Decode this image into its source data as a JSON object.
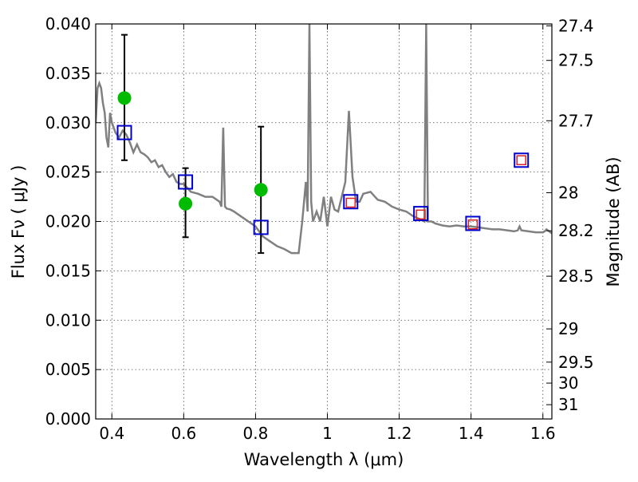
{
  "chart_data": {
    "type": "scatter",
    "xlabel": "Wavelength  λ (μm)",
    "ylabel": "Flux  Fν  ( μJy )",
    "y2label": "Magnitude (AB)",
    "xlim": [
      0.355,
      1.625
    ],
    "ylim": [
      0.0,
      0.04
    ],
    "grid": true,
    "x_ticks": [
      0.4,
      0.6,
      0.8,
      1.0,
      1.2,
      1.4,
      1.6
    ],
    "x_tick_labels": [
      "0.4",
      "0.6",
      "0.8",
      "1",
      "1.2",
      "1.4",
      "1.6"
    ],
    "y_ticks": [
      0.0,
      0.005,
      0.01,
      0.015,
      0.02,
      0.025,
      0.03,
      0.035,
      0.04
    ],
    "y_tick_labels": [
      "0.000",
      "0.005",
      "0.010",
      "0.015",
      "0.020",
      "0.025",
      "0.030",
      "0.035",
      "0.040"
    ],
    "y2_ticks": [
      27.4,
      27.5,
      27.7,
      28.0,
      28.2,
      28.5,
      29.0,
      29.5,
      30.0,
      31.0
    ],
    "y2_tick_labels": [
      "27.4",
      "27.5",
      "27.7",
      "28",
      "28.2",
      "28.5",
      "29",
      "29.5",
      "30",
      "31"
    ],
    "series": [
      {
        "kind": "model-spectrum-line",
        "color": "#808080",
        "x": [
          0.355,
          0.36,
          0.365,
          0.37,
          0.375,
          0.38,
          0.385,
          0.39,
          0.395,
          0.4,
          0.41,
          0.42,
          0.43,
          0.44,
          0.45,
          0.46,
          0.47,
          0.48,
          0.49,
          0.5,
          0.51,
          0.52,
          0.53,
          0.54,
          0.55,
          0.56,
          0.57,
          0.58,
          0.59,
          0.6,
          0.62,
          0.64,
          0.66,
          0.68,
          0.7,
          0.705,
          0.71,
          0.715,
          0.72,
          0.73,
          0.74,
          0.76,
          0.78,
          0.8,
          0.82,
          0.84,
          0.86,
          0.88,
          0.9,
          0.92,
          0.93,
          0.94,
          0.945,
          0.95,
          0.955,
          0.96,
          0.97,
          0.98,
          0.99,
          1.0,
          1.005,
          1.01,
          1.02,
          1.03,
          1.04,
          1.05,
          1.06,
          1.07,
          1.08,
          1.09,
          1.1,
          1.12,
          1.14,
          1.16,
          1.18,
          1.2,
          1.22,
          1.24,
          1.26,
          1.27,
          1.275,
          1.28,
          1.29,
          1.3,
          1.32,
          1.34,
          1.36,
          1.38,
          1.4,
          1.42,
          1.44,
          1.46,
          1.48,
          1.5,
          1.52,
          1.53,
          1.535,
          1.54,
          1.56,
          1.58,
          1.6,
          1.605,
          1.61,
          1.625
        ],
        "y": [
          0.03,
          0.0335,
          0.034,
          0.0335,
          0.032,
          0.031,
          0.0285,
          0.0275,
          0.031,
          0.03,
          0.029,
          0.0285,
          0.0292,
          0.0288,
          0.028,
          0.027,
          0.0278,
          0.027,
          0.0268,
          0.0265,
          0.026,
          0.0262,
          0.0255,
          0.0257,
          0.025,
          0.0245,
          0.0248,
          0.024,
          0.0238,
          0.0238,
          0.023,
          0.0228,
          0.0225,
          0.0225,
          0.022,
          0.0215,
          0.0295,
          0.0215,
          0.0213,
          0.0212,
          0.021,
          0.0205,
          0.02,
          0.0195,
          0.0185,
          0.018,
          0.0175,
          0.0172,
          0.0168,
          0.0168,
          0.02,
          0.024,
          0.021,
          0.04,
          0.022,
          0.02,
          0.021,
          0.02,
          0.0225,
          0.0195,
          0.021,
          0.0225,
          0.0212,
          0.021,
          0.0225,
          0.024,
          0.0312,
          0.0245,
          0.022,
          0.022,
          0.0228,
          0.023,
          0.0222,
          0.022,
          0.0215,
          0.0212,
          0.021,
          0.0205,
          0.0202,
          0.02,
          0.04,
          0.02,
          0.02,
          0.0198,
          0.0196,
          0.0195,
          0.0196,
          0.0195,
          0.0195,
          0.0194,
          0.0193,
          0.0192,
          0.0192,
          0.0191,
          0.019,
          0.0191,
          0.0195,
          0.0191,
          0.019,
          0.0189,
          0.0189,
          0.019,
          0.0192,
          0.0188
        ]
      },
      {
        "kind": "observed-points",
        "color": "#00bb00",
        "x": [
          0.435,
          0.605,
          0.815
        ],
        "y": [
          0.0325,
          0.0218,
          0.0232
        ]
      },
      {
        "kind": "error-bars",
        "color": "#000000",
        "x": [
          0.435,
          0.605,
          0.815
        ],
        "y_low": [
          0.0262,
          0.0184,
          0.0168
        ],
        "y_high": [
          0.0389,
          0.0254,
          0.0296
        ]
      },
      {
        "kind": "model-band-flux-blue",
        "color": "#0000cc",
        "x": [
          0.435,
          0.605,
          0.815,
          1.065,
          1.26,
          1.405,
          1.54
        ],
        "y": [
          0.029,
          0.024,
          0.0194,
          0.022,
          0.0208,
          0.0198,
          0.0262
        ]
      },
      {
        "kind": "model-band-flux-red",
        "color": "#dd2222",
        "x": [
          1.065,
          1.26,
          1.405,
          1.54
        ],
        "y": [
          0.0219,
          0.0207,
          0.0197,
          0.0262
        ]
      }
    ]
  }
}
